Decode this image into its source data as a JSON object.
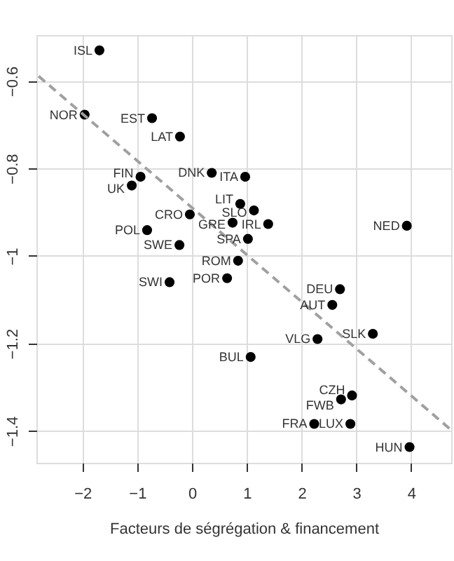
{
  "chart_data": {
    "type": "scatter",
    "xlabel": "Facteurs de ségrégation & financement",
    "xlim": [
      -2.84,
      4.73
    ],
    "ylim": [
      -1.473,
      -0.495
    ],
    "xticks": [
      -2,
      -1,
      0,
      1,
      2,
      3,
      4
    ],
    "yticks": [
      -1.4,
      -1.2,
      -1.0,
      -0.8,
      -0.6
    ],
    "grid": true,
    "marker": "circle",
    "series": [
      {
        "color": "#000000",
        "x": [
          -1.69,
          -1.96,
          -0.73,
          -0.22,
          -0.94,
          -1.1,
          0.36,
          0.97,
          0.88,
          1.13,
          -0.04,
          0.74,
          1.39,
          3.92,
          -0.82,
          1.02,
          -0.23,
          0.84,
          -0.41,
          0.64,
          2.7,
          2.56,
          3.3,
          2.29,
          1.07,
          2.92,
          2.72,
          2.23,
          2.89,
          3.97
        ],
        "values": [
          -0.53,
          -0.677,
          -0.685,
          -0.727,
          -0.819,
          -0.839,
          -0.81,
          -0.819,
          -0.881,
          -0.896,
          -0.905,
          -0.924,
          -0.927,
          -0.931,
          -0.941,
          -0.961,
          -0.975,
          -1.011,
          -1.06,
          -1.051,
          -1.076,
          -1.112,
          -1.178,
          -1.19,
          -1.231,
          -1.319,
          -1.328,
          -1.384,
          -1.384,
          -1.437
        ]
      },
      {
        "type": "line",
        "marker": "none",
        "color": "#a0a0a0",
        "line_style": "dashed",
        "x": [
          -2.8,
          4.73
        ],
        "values": [
          -0.589,
          -1.398
        ]
      }
    ],
    "annotations": [
      {
        "text": "ISL",
        "x": -1.69,
        "y": -0.53
      },
      {
        "text": "NOR",
        "x": -1.96,
        "y": -0.677
      },
      {
        "text": "EST",
        "x": -0.73,
        "y": -0.685
      },
      {
        "text": "LAT",
        "x": -0.22,
        "y": -0.727
      },
      {
        "text": "FIN",
        "x": -0.94,
        "y": -0.819
      },
      {
        "text": "UK",
        "x": -1.1,
        "y": -0.839
      },
      {
        "text": "DNK",
        "x": 0.36,
        "y": -0.81
      },
      {
        "text": "ITA",
        "x": 0.97,
        "y": -0.819
      },
      {
        "text": "LIT",
        "x": 0.88,
        "y": -0.881
      },
      {
        "text": "SLO",
        "x": 1.13,
        "y": -0.896
      },
      {
        "text": "CRO",
        "x": -0.04,
        "y": -0.905
      },
      {
        "text": "GRE",
        "x": 0.74,
        "y": -0.924
      },
      {
        "text": "IRL",
        "x": 1.39,
        "y": -0.927
      },
      {
        "text": "NED",
        "x": 3.92,
        "y": -0.931
      },
      {
        "text": "POL",
        "x": -0.82,
        "y": -0.941
      },
      {
        "text": "SPA",
        "x": 1.02,
        "y": -0.961
      },
      {
        "text": "SWE",
        "x": -0.23,
        "y": -0.975
      },
      {
        "text": "ROM",
        "x": 0.84,
        "y": -1.011
      },
      {
        "text": "SWI",
        "x": -0.41,
        "y": -1.06
      },
      {
        "text": "POR",
        "x": 0.64,
        "y": -1.051
      },
      {
        "text": "DEU",
        "x": 2.7,
        "y": -1.076
      },
      {
        "text": "AUT",
        "x": 2.56,
        "y": -1.112
      },
      {
        "text": "SLK",
        "x": 3.3,
        "y": -1.178
      },
      {
        "text": "VLG",
        "x": 2.29,
        "y": -1.19
      },
      {
        "text": "BUL",
        "x": 1.07,
        "y": -1.231
      },
      {
        "text": "CZH",
        "x": 2.92,
        "y": -1.319
      },
      {
        "text": "FWB",
        "x": 2.72,
        "y": -1.328
      },
      {
        "text": "FRA",
        "x": 2.23,
        "y": -1.384
      },
      {
        "text": "LUX",
        "x": 2.89,
        "y": -1.384
      },
      {
        "text": "HUN",
        "x": 3.97,
        "y": -1.437
      }
    ]
  }
}
